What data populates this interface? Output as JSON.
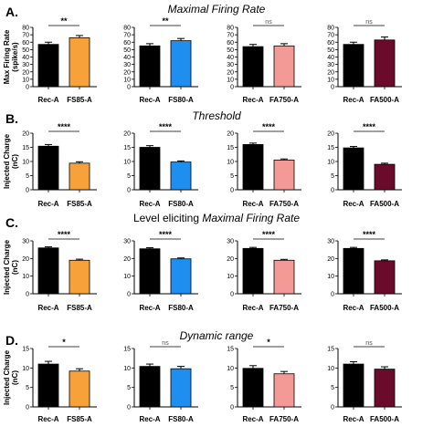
{
  "colors": {
    "rec": "#000000",
    "FS85-A": "#f7a13a",
    "FS80-A": "#1e8ff0",
    "FA750-A": "#f39a97",
    "FA500-A": "#6b0a2b"
  },
  "rows": [
    {
      "letter": "A.",
      "title_parts": [
        {
          "text": "Maximal Firing Rate",
          "italic": true
        }
      ],
      "ylabel": [
        "Max Firing Rate",
        "(spike/s)"
      ]
    },
    {
      "letter": "B.",
      "title_parts": [
        {
          "text": "Threshold",
          "italic": true
        }
      ],
      "ylabel": [
        "Injected Charge",
        "(nC)"
      ]
    },
    {
      "letter": "C.",
      "title_parts": [
        {
          "text": "Level eliciting ",
          "italic": false
        },
        {
          "text": "Maximal Firing Rate",
          "italic": true
        }
      ],
      "ylabel": [
        "Injected Charge",
        "(nC)"
      ]
    },
    {
      "letter": "D.",
      "title_parts": [
        {
          "text": "Dynamic range",
          "italic": true
        }
      ],
      "ylabel": [
        "Injected Charge",
        "(nC)"
      ]
    }
  ],
  "chart_data": [
    {
      "type": "bar",
      "row": 0,
      "col": 0,
      "categories": [
        "Rec-A",
        "FS85-A"
      ],
      "values": [
        57,
        66
      ],
      "errors": [
        3,
        3
      ],
      "ylim": [
        0,
        80
      ],
      "yticks": [
        "0",
        "10",
        "20",
        "30",
        "40",
        "50",
        "60",
        "70",
        "80"
      ],
      "sig": "**"
    },
    {
      "type": "bar",
      "row": 0,
      "col": 1,
      "categories": [
        "Rec-A",
        "FS80-A"
      ],
      "values": [
        55,
        62
      ],
      "errors": [
        3,
        3
      ],
      "ylim": [
        0,
        80
      ],
      "yticks": [
        "0",
        "10",
        "20",
        "30",
        "40",
        "50",
        "60",
        "70",
        "80"
      ],
      "sig": "**"
    },
    {
      "type": "bar",
      "row": 0,
      "col": 2,
      "categories": [
        "Rec-A",
        "FA750-A"
      ],
      "values": [
        54,
        55
      ],
      "errors": [
        3,
        3
      ],
      "ylim": [
        0,
        80
      ],
      "yticks": [
        "0",
        "10",
        "20",
        "30",
        "40",
        "50",
        "60",
        "70",
        "80"
      ],
      "sig": "ns"
    },
    {
      "type": "bar",
      "row": 0,
      "col": 3,
      "categories": [
        "Rec-A",
        "FA500-A"
      ],
      "values": [
        57,
        63
      ],
      "errors": [
        3,
        4
      ],
      "ylim": [
        0,
        80
      ],
      "yticks": [
        "0",
        "10",
        "20",
        "30",
        "40",
        "50",
        "60",
        "70",
        "80"
      ],
      "sig": "ns"
    },
    {
      "type": "bar",
      "row": 1,
      "col": 0,
      "categories": [
        "Rec-A",
        "FS85-A"
      ],
      "values": [
        15.4,
        9.4
      ],
      "errors": [
        0.6,
        0.5
      ],
      "ylim": [
        0,
        20
      ],
      "yticks": [
        "0",
        "5",
        "10",
        "15",
        "20"
      ],
      "sig": "****"
    },
    {
      "type": "bar",
      "row": 1,
      "col": 1,
      "categories": [
        "Rec-A",
        "FS80-A"
      ],
      "values": [
        15.0,
        9.8
      ],
      "errors": [
        0.6,
        0.4
      ],
      "ylim": [
        0,
        20
      ],
      "yticks": [
        "0",
        "5",
        "10",
        "15",
        "20"
      ],
      "sig": "****"
    },
    {
      "type": "bar",
      "row": 1,
      "col": 2,
      "categories": [
        "Rec-A",
        "FA750-A"
      ],
      "values": [
        16.0,
        10.5
      ],
      "errors": [
        0.5,
        0.4
      ],
      "ylim": [
        0,
        20
      ],
      "yticks": [
        "0",
        "5",
        "10",
        "15",
        "20"
      ],
      "sig": "****"
    },
    {
      "type": "bar",
      "row": 1,
      "col": 3,
      "categories": [
        "Rec-A",
        "FA500-A"
      ],
      "values": [
        14.8,
        9.0
      ],
      "errors": [
        0.5,
        0.4
      ],
      "ylim": [
        0,
        20
      ],
      "yticks": [
        "0",
        "5",
        "10",
        "15",
        "20"
      ],
      "sig": "****"
    },
    {
      "type": "bar",
      "row": 2,
      "col": 0,
      "categories": [
        "Rec-A",
        "FS85-A"
      ],
      "values": [
        26,
        19
      ],
      "errors": [
        0.6,
        0.6
      ],
      "ylim": [
        0,
        30
      ],
      "yticks": [
        "0",
        "10",
        "20",
        "30"
      ],
      "sig": "****"
    },
    {
      "type": "bar",
      "row": 2,
      "col": 1,
      "categories": [
        "Rec-A",
        "FS80-A"
      ],
      "values": [
        25.5,
        19.8
      ],
      "errors": [
        0.6,
        0.5
      ],
      "ylim": [
        0,
        30
      ],
      "yticks": [
        "0",
        "10",
        "20",
        "30"
      ],
      "sig": "****"
    },
    {
      "type": "bar",
      "row": 2,
      "col": 2,
      "categories": [
        "Rec-A",
        "FA750-A"
      ],
      "values": [
        25.7,
        19.0
      ],
      "errors": [
        0.6,
        0.5
      ],
      "ylim": [
        0,
        30
      ],
      "yticks": [
        "0",
        "10",
        "20",
        "30"
      ],
      "sig": "****"
    },
    {
      "type": "bar",
      "row": 2,
      "col": 3,
      "categories": [
        "Rec-A",
        "FA500-A"
      ],
      "values": [
        25.7,
        18.7
      ],
      "errors": [
        0.6,
        0.5
      ],
      "ylim": [
        0,
        30
      ],
      "yticks": [
        "0",
        "10",
        "20",
        "30"
      ],
      "sig": "****"
    },
    {
      "type": "bar",
      "row": 3,
      "col": 0,
      "categories": [
        "Rec-A",
        "FS85-A"
      ],
      "values": [
        11.0,
        9.2
      ],
      "errors": [
        0.7,
        0.6
      ],
      "ylim": [
        0,
        15
      ],
      "yticks": [
        "0",
        "5",
        "10",
        "15"
      ],
      "sig": "*"
    },
    {
      "type": "bar",
      "row": 3,
      "col": 1,
      "categories": [
        "Rec-A",
        "FS80-A"
      ],
      "values": [
        10.4,
        9.8
      ],
      "errors": [
        0.6,
        0.6
      ],
      "ylim": [
        0,
        15
      ],
      "yticks": [
        "0",
        "5",
        "10",
        "15"
      ],
      "sig": "ns"
    },
    {
      "type": "bar",
      "row": 3,
      "col": 2,
      "categories": [
        "Rec-A",
        "FA750-A"
      ],
      "values": [
        9.9,
        8.5
      ],
      "errors": [
        0.7,
        0.6
      ],
      "ylim": [
        0,
        15
      ],
      "yticks": [
        "0",
        "5",
        "10",
        "15"
      ],
      "sig": "*"
    },
    {
      "type": "bar",
      "row": 3,
      "col": 3,
      "categories": [
        "Rec-A",
        "FA500-A"
      ],
      "values": [
        11.0,
        9.7
      ],
      "errors": [
        0.6,
        0.6
      ],
      "ylim": [
        0,
        15
      ],
      "yticks": [
        "0",
        "5",
        "10",
        "15"
      ],
      "sig": "ns"
    }
  ]
}
